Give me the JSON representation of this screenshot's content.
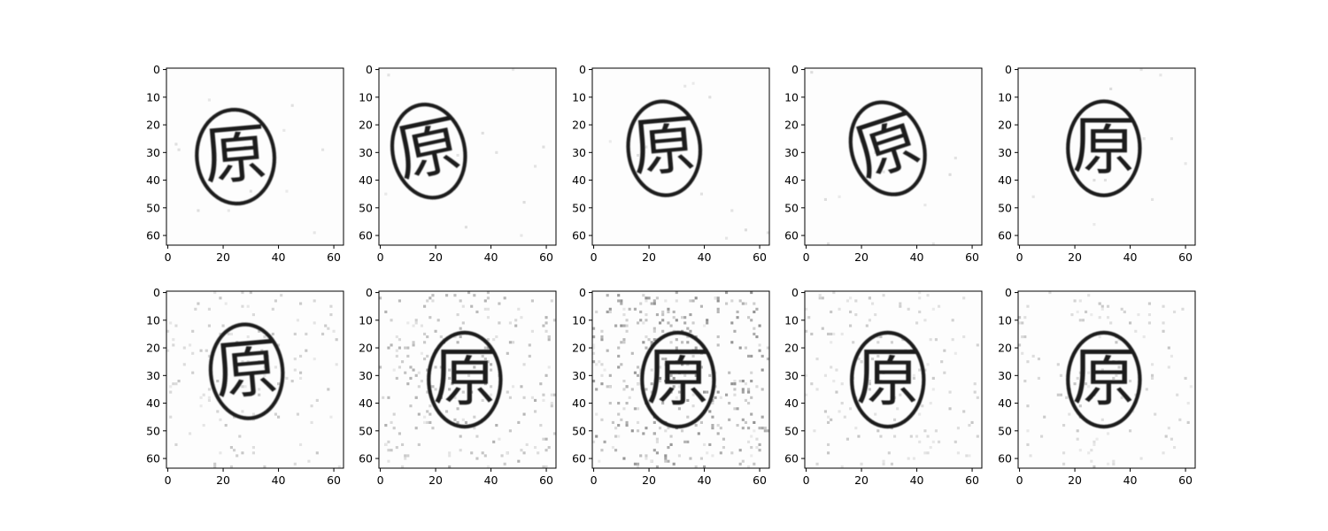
{
  "figure": {
    "rows": 2,
    "cols": 5,
    "image_size": 64,
    "x_ticks": [
      0,
      20,
      40,
      60
    ],
    "y_ticks": [
      0,
      10,
      20,
      30,
      40,
      50,
      60
    ],
    "colormap": "gray",
    "seal_glyph": "原"
  },
  "panels": [
    {
      "row": 0,
      "kind": "original",
      "seal_center": [
        25,
        32
      ],
      "seal_radius": [
        14,
        17
      ],
      "rotation": -5,
      "noise": 0.0
    },
    {
      "row": 0,
      "kind": "original",
      "seal_center": [
        18,
        30
      ],
      "seal_radius": [
        13,
        17
      ],
      "rotation": -12,
      "noise": 0.0
    },
    {
      "row": 0,
      "kind": "original",
      "seal_center": [
        26,
        29
      ],
      "seal_radius": [
        13,
        17
      ],
      "rotation": -5,
      "noise": 0.0
    },
    {
      "row": 0,
      "kind": "original",
      "seal_center": [
        30,
        29
      ],
      "seal_radius": [
        13,
        17
      ],
      "rotation": -18,
      "noise": 0.0
    },
    {
      "row": 0,
      "kind": "original",
      "seal_center": [
        31,
        29
      ],
      "seal_radius": [
        13,
        17
      ],
      "rotation": 0,
      "noise": 0.0
    },
    {
      "row": 1,
      "kind": "generated",
      "seal_center": [
        29,
        29
      ],
      "seal_radius": [
        13,
        17
      ],
      "rotation": -5,
      "noise": 0.25
    },
    {
      "row": 1,
      "kind": "generated",
      "seal_center": [
        31,
        32
      ],
      "seal_radius": [
        13,
        17
      ],
      "rotation": 0,
      "noise": 0.45
    },
    {
      "row": 1,
      "kind": "generated",
      "seal_center": [
        31,
        32
      ],
      "seal_radius": [
        13,
        17
      ],
      "rotation": 0,
      "noise": 0.7
    },
    {
      "row": 1,
      "kind": "generated",
      "seal_center": [
        30,
        32
      ],
      "seal_radius": [
        13,
        17
      ],
      "rotation": 0,
      "noise": 0.3
    },
    {
      "row": 1,
      "kind": "generated",
      "seal_center": [
        31,
        32
      ],
      "seal_radius": [
        13,
        17
      ],
      "rotation": 0,
      "noise": 0.25
    }
  ]
}
